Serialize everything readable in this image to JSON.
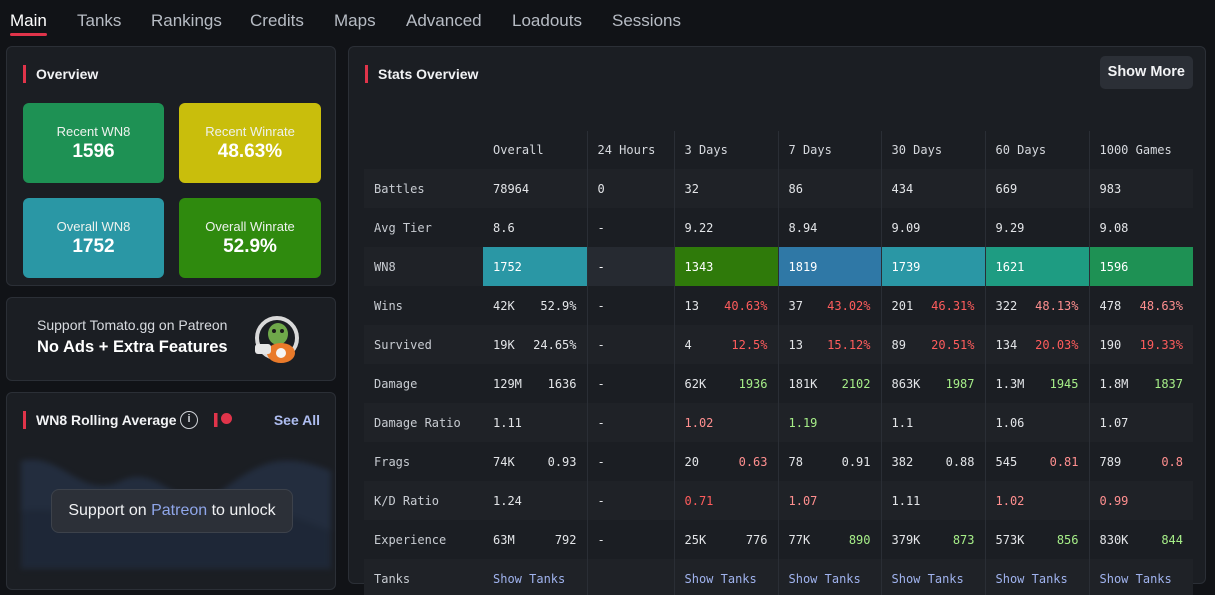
{
  "nav": {
    "tabs": [
      {
        "label": "Main",
        "active": true
      },
      {
        "label": "Tanks"
      },
      {
        "label": "Rankings"
      },
      {
        "label": "Credits"
      },
      {
        "label": "Maps"
      },
      {
        "label": "Advanced"
      },
      {
        "label": "Loadouts"
      },
      {
        "label": "Sessions"
      }
    ]
  },
  "overview": {
    "title": "Overview",
    "tiles": [
      {
        "label": "Recent WN8",
        "value": "1596",
        "color": "#1e9154"
      },
      {
        "label": "Recent Winrate",
        "value": "48.63%",
        "color": "#c9be0c"
      },
      {
        "label": "Overall WN8",
        "value": "1752",
        "color": "#2a97a5"
      },
      {
        "label": "Overall Winrate",
        "value": "52.9%",
        "color": "#2f8a0e"
      }
    ]
  },
  "patreon": {
    "line1": "Support Tomato.gg on Patreon",
    "line2": "No Ads + Extra Features"
  },
  "wn8_rolling": {
    "title": "WN8 Rolling Average",
    "see_all": "See All",
    "unlock_prefix": "Support on",
    "unlock_link": "Patreon",
    "unlock_suffix": "to unlock"
  },
  "stats": {
    "title": "Stats Overview",
    "show_more": "Show More",
    "columns": [
      "Overall",
      "24 Hours",
      "3 Days",
      "7 Days",
      "30 Days",
      "60 Days",
      "1000 Games"
    ],
    "rows": {
      "battles": {
        "label": "Battles",
        "values": [
          "78964",
          "0",
          "32",
          "86",
          "434",
          "669",
          "983"
        ]
      },
      "avg_tier": {
        "label": "Avg Tier",
        "values": [
          "8.6",
          "-",
          "9.22",
          "8.94",
          "9.09",
          "9.29",
          "9.08"
        ]
      },
      "wn8": {
        "label": "WN8",
        "values": [
          "1752",
          "-",
          "1343",
          "1819",
          "1739",
          "1621",
          "1596"
        ],
        "colors": [
          "#2a97a5",
          "#262a31",
          "#2f7a0a",
          "#2f78a6",
          "#2a97a5",
          "#1e9c82",
          "#1e9154"
        ]
      },
      "wins": {
        "label": "Wins",
        "a": [
          "42K",
          "-",
          "13",
          "37",
          "201",
          "322",
          "478"
        ],
        "b": [
          "52.9%",
          "",
          "40.63%",
          "43.02%",
          "46.31%",
          "48.13%",
          "48.63%"
        ]
      },
      "survived": {
        "label": "Survived",
        "a": [
          "19K",
          "-",
          "4",
          "13",
          "89",
          "134",
          "190"
        ],
        "b": [
          "24.65%",
          "",
          "12.5%",
          "15.12%",
          "20.51%",
          "20.03%",
          "19.33%"
        ]
      },
      "damage": {
        "label": "Damage",
        "a": [
          "129M",
          "-",
          "62K",
          "181K",
          "863K",
          "1.3M",
          "1.8M"
        ],
        "b": [
          "1636",
          "",
          "1936",
          "2102",
          "1987",
          "1945",
          "1837"
        ]
      },
      "damage_ratio": {
        "label": "Damage Ratio",
        "values": [
          "1.11",
          "-",
          "1.02",
          "1.19",
          "1.1",
          "1.06",
          "1.07"
        ]
      },
      "frags": {
        "label": "Frags",
        "a": [
          "74K",
          "-",
          "20",
          "78",
          "382",
          "545",
          "789"
        ],
        "b": [
          "0.93",
          "",
          "0.63",
          "0.91",
          "0.88",
          "0.81",
          "0.8"
        ]
      },
      "kd_ratio": {
        "label": "K/D Ratio",
        "values": [
          "1.24",
          "-",
          "0.71",
          "1.07",
          "1.11",
          "1.02",
          "0.99"
        ]
      },
      "experience": {
        "label": "Experience",
        "a": [
          "63M",
          "-",
          "25K",
          "77K",
          "379K",
          "573K",
          "830K"
        ],
        "b": [
          "792",
          "",
          "776",
          "890",
          "873",
          "856",
          "844"
        ]
      },
      "tanks": {
        "label": "Tanks",
        "link": "Show Tanks"
      }
    }
  }
}
